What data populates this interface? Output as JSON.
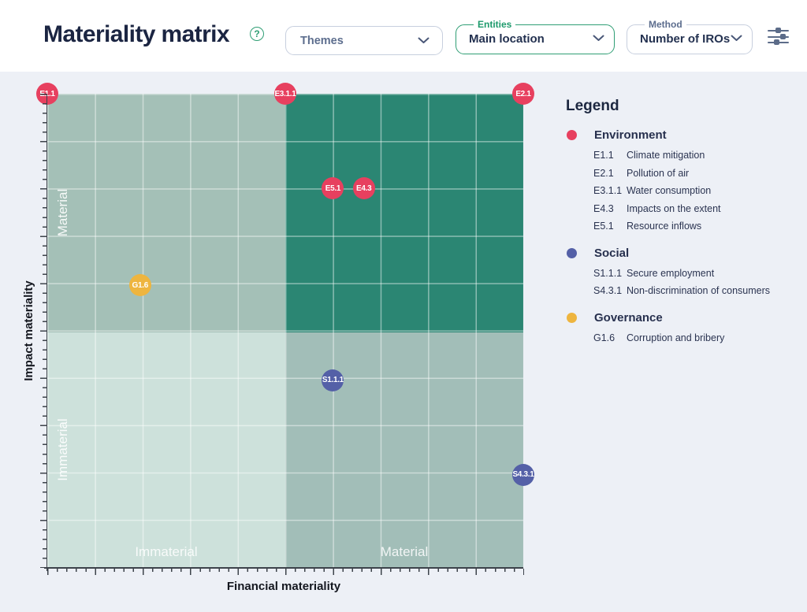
{
  "header": {
    "title": "Materiality matrix",
    "filters": {
      "themes": {
        "value": "Themes"
      },
      "entities": {
        "label": "Entities",
        "value": "Main location"
      },
      "method": {
        "label": "Method",
        "value": "Number of IROs"
      }
    }
  },
  "colors": {
    "environment": "#e7405f",
    "social": "#5460a7",
    "governance": "#eeb53f",
    "accent_green": "#2f9e74",
    "quadrant_top_left": "#a4c0b7",
    "quadrant_top_right": "#2b8673",
    "quadrant_bottom_left": "#cde1db",
    "quadrant_bottom_right": "#a2beb8",
    "background": "#edf0f6"
  },
  "chart_data": {
    "type": "scatter",
    "title": "Materiality matrix",
    "xlabel": "Financial materiality",
    "ylabel": "Impact materiality",
    "xlim": [
      0,
      10
    ],
    "ylim": [
      0,
      10
    ],
    "grid": true,
    "legend_position": "right",
    "x_zones": [
      "Immaterial",
      "Material"
    ],
    "y_zones": [
      "Material",
      "Immaterial"
    ],
    "points": [
      {
        "id": "E1.1",
        "label": "Climate mitigation",
        "group": "Environment",
        "x": 0,
        "y": 10
      },
      {
        "id": "E3.1.1",
        "label": "Water consumption",
        "group": "Environment",
        "x": 5,
        "y": 10
      },
      {
        "id": "E2.1",
        "label": "Pollution of air",
        "group": "Environment",
        "x": 10,
        "y": 10
      },
      {
        "id": "E5.1",
        "label": "Resource inflows",
        "group": "Environment",
        "x": 6,
        "y": 8
      },
      {
        "id": "E4.3",
        "label": "Impacts on the extent",
        "group": "Environment",
        "x": 6.65,
        "y": 8
      },
      {
        "id": "G1.6",
        "label": "Corruption and bribery",
        "group": "Governance",
        "x": 1.95,
        "y": 5.95
      },
      {
        "id": "S1.1.1",
        "label": "Secure employment",
        "group": "Social",
        "x": 6,
        "y": 3.95
      },
      {
        "id": "S4.3.1",
        "label": "Non-discrimination of consumers",
        "group": "Social",
        "x": 10,
        "y": 1.95
      }
    ]
  },
  "legend": {
    "title": "Legend",
    "groups": [
      {
        "name": "Environment",
        "color": "#e7405f",
        "items": [
          {
            "code": "E1.1",
            "label": "Climate mitigation"
          },
          {
            "code": "E2.1",
            "label": "Pollution of air"
          },
          {
            "code": "E3.1.1",
            "label": "Water consumption"
          },
          {
            "code": "E4.3",
            "label": "Impacts on the extent"
          },
          {
            "code": "E5.1",
            "label": "Resource inflows"
          }
        ]
      },
      {
        "name": "Social",
        "color": "#5460a7",
        "items": [
          {
            "code": "S1.1.1",
            "label": "Secure employment"
          },
          {
            "code": "S4.3.1",
            "label": "Non-discrimination of consumers"
          }
        ]
      },
      {
        "name": "Governance",
        "color": "#eeb53f",
        "items": [
          {
            "code": "G1.6",
            "label": "Corruption and bribery"
          }
        ]
      }
    ]
  }
}
